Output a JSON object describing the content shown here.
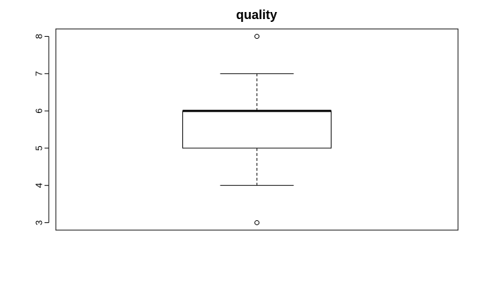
{
  "chart_data": {
    "type": "boxplot",
    "title": "quality",
    "xlabel": "",
    "ylabel": "",
    "ylim": [
      2.8,
      8.2
    ],
    "yticks": [
      3,
      4,
      5,
      6,
      7,
      8
    ],
    "ytick_labels": [
      "3",
      "4",
      "5",
      "6",
      "7",
      "8"
    ],
    "grid": false,
    "box": {
      "whisker_low": 4,
      "q1": 5,
      "median": 6,
      "q3": 6,
      "whisker_high": 7,
      "outliers": [
        3,
        8
      ]
    }
  }
}
